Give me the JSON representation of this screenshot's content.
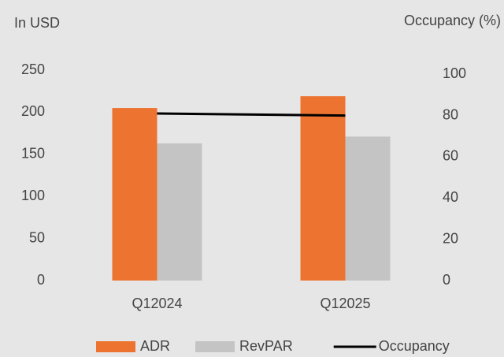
{
  "chart_data": {
    "type": "bar",
    "y_label": "In USD",
    "y2_label": "Occupancy (%)",
    "categories": [
      "Q12024",
      "Q12025"
    ],
    "series": [
      {
        "name": "ADR",
        "color": "#ed7331",
        "values": [
          205,
          219
        ]
      },
      {
        "name": "RevPAR",
        "color": "#c4c4c4",
        "values": [
          163,
          171
        ]
      },
      {
        "name": "Occupancy",
        "color": "#000000",
        "values": [
          81,
          80
        ],
        "axis": "y2",
        "type": "line"
      }
    ],
    "ylim": [
      0,
      250
    ],
    "yticks": [
      0,
      50,
      100,
      150,
      200,
      250
    ],
    "y2lim": [
      0,
      102
    ],
    "y2ticks": [
      0,
      20,
      40,
      60,
      80,
      100
    ],
    "legend": "bottom"
  }
}
